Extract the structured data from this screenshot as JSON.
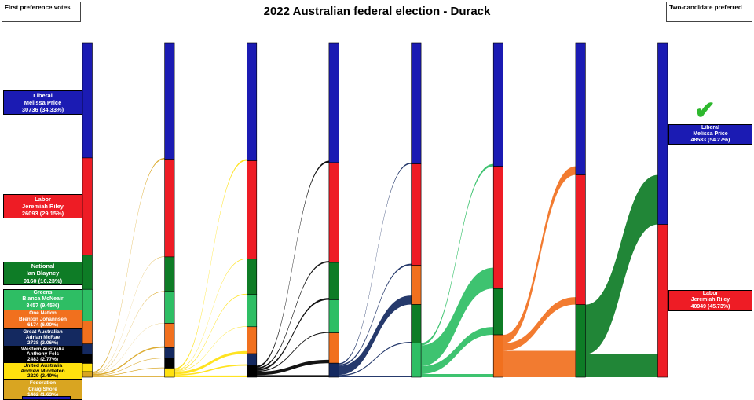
{
  "title": "2022 Australian federal election - Durack",
  "corner_left": "First preference votes",
  "corner_right": "Two-candidate preferred",
  "icons": {
    "winner_check": "✔"
  },
  "parties": {
    "LIB": {
      "name": "Liberal",
      "color": "#1B1BB3",
      "text": "#ffffff"
    },
    "ALP": {
      "name": "Labor",
      "color": "#EE1C25",
      "text": "#ffffff"
    },
    "NAT": {
      "name": "National",
      "color": "#0E7C26",
      "text": "#ffffff"
    },
    "GRN": {
      "name": "Greens",
      "color": "#2EBE64",
      "text": "#ffffff"
    },
    "ON": {
      "name": "One Nation",
      "color": "#F1701E",
      "text": "#ffffff"
    },
    "GAP": {
      "name": "Great Australian",
      "color": "#142960",
      "text": "#ffffff"
    },
    "WAP": {
      "name": "Western Australia",
      "color": "#000000",
      "text": "#ffffff"
    },
    "UAP": {
      "name": "United Australia",
      "color": "#FFE10E",
      "text": "#000000"
    },
    "FED": {
      "name": "Federation",
      "color": "#D9A521",
      "text": "#ffffff"
    }
  },
  "first_pref": [
    {
      "key": "LIB",
      "party": "Liberal",
      "candidate": "Melissa Price",
      "votes": "30736 (34.33%)"
    },
    {
      "key": "ALP",
      "party": "Labor",
      "candidate": "Jeremiah Riley",
      "votes": "26093 (29.15%)"
    },
    {
      "key": "NAT",
      "party": "National",
      "candidate": "Ian Blayney",
      "votes": "9160 (10.23%)"
    },
    {
      "key": "GRN",
      "party": "Greens",
      "candidate": "Bianca McNeair",
      "votes": "8457 (9.45%)"
    },
    {
      "key": "ON",
      "party": "One Nation",
      "candidate": "Brenton Johannsen",
      "votes": "6174 (6.90%)"
    },
    {
      "key": "GAP",
      "party": "Great Australian",
      "candidate": "Adrian McRae",
      "votes": "2738 (3.06%)"
    },
    {
      "key": "WAP",
      "party": "Western Australia",
      "candidate": "Anthony Fels",
      "votes": "2483 (2.77%)"
    },
    {
      "key": "UAP",
      "party": "United Australia",
      "candidate": "Andrew Middleton",
      "votes": "2229 (2.49%)"
    },
    {
      "key": "FED",
      "party": "Federation",
      "candidate": "Craig Shore",
      "votes": "1462 (1.63%)"
    }
  ],
  "tcp": [
    {
      "key": "LIB",
      "party": "Liberal",
      "candidate": "Melissa Price",
      "votes": "48583 (54.27%)",
      "winner": true
    },
    {
      "key": "ALP",
      "party": "Labor",
      "candidate": "Jeremiah Riley",
      "votes": "40949 (45.73%)",
      "winner": false
    }
  ],
  "chart_data": {
    "type": "sankey",
    "unit": "votes",
    "total_votes": 89532,
    "title": "2022 Australian federal election - Durack",
    "columns": [
      {
        "parties": [
          "LIB",
          "ALP",
          "NAT",
          "GRN",
          "ON",
          "GAP",
          "WAP",
          "UAP",
          "FED"
        ],
        "votes": [
          30736,
          26093,
          9160,
          8457,
          6174,
          2738,
          2483,
          2229,
          1462
        ]
      },
      {
        "parties": [
          "LIB",
          "ALP",
          "NAT",
          "GRN",
          "ON",
          "GAP",
          "WAP",
          "UAP"
        ],
        "votes": [
          31086,
          26193,
          9290,
          8517,
          6524,
          2858,
          2653,
          2411
        ]
      },
      {
        "parties": [
          "LIB",
          "ALP",
          "NAT",
          "GRN",
          "ON",
          "GAP",
          "WAP"
        ],
        "votes": [
          31506,
          26373,
          9490,
          8637,
          7224,
          3208,
          3094
        ]
      },
      {
        "parties": [
          "LIB",
          "ALP",
          "NAT",
          "GRN",
          "ON",
          "GAP"
        ],
        "votes": [
          32006,
          26773,
          9990,
          8887,
          8124,
          3752
        ]
      },
      {
        "parties": [
          "LIB",
          "ALP",
          "ON",
          "NAT",
          "GRN"
        ],
        "votes": [
          32356,
          27173,
          10526,
          10290,
          9187
        ]
      },
      {
        "parties": [
          "LIB",
          "ALP",
          "NAT",
          "ON"
        ],
        "votes": [
          33006,
          32773,
          12390,
          11363
        ]
      },
      {
        "parties": [
          "LIB",
          "ALP",
          "NAT"
        ],
        "votes": [
          35306,
          34775,
          19451
        ]
      },
      {
        "parties": [
          "LIB",
          "ALP"
        ],
        "votes": [
          48583,
          40949
        ]
      }
    ],
    "transfers": [
      {
        "from": "FED",
        "to": {
          "LIB": 350,
          "ALP": 100,
          "NAT": 130,
          "GRN": 60,
          "ON": 350,
          "GAP": 120,
          "WAP": 170,
          "UAP": 182
        }
      },
      {
        "from": "UAP",
        "to": {
          "LIB": 420,
          "ALP": 180,
          "NAT": 200,
          "GRN": 120,
          "ON": 700,
          "GAP": 350,
          "WAP": 441
        }
      },
      {
        "from": "WAP",
        "to": {
          "LIB": 500,
          "ALP": 400,
          "NAT": 500,
          "GRN": 250,
          "ON": 900,
          "GAP": 544
        }
      },
      {
        "from": "GAP",
        "to": {
          "LIB": 350,
          "ALP": 400,
          "NAT": 300,
          "GRN": 300,
          "ON": 2402
        }
      },
      {
        "from": "GRN",
        "to": {
          "LIB": 650,
          "ALP": 5600,
          "NAT": 2100,
          "ON": 837
        }
      },
      {
        "from": "ON",
        "to": {
          "LIB": 2300,
          "ALP": 2002,
          "NAT": 7061
        }
      },
      {
        "from": "NAT",
        "to": {
          "LIB": 13277,
          "ALP": 6174
        }
      }
    ],
    "final": {
      "LIB": 48583,
      "ALP": 40949
    }
  }
}
